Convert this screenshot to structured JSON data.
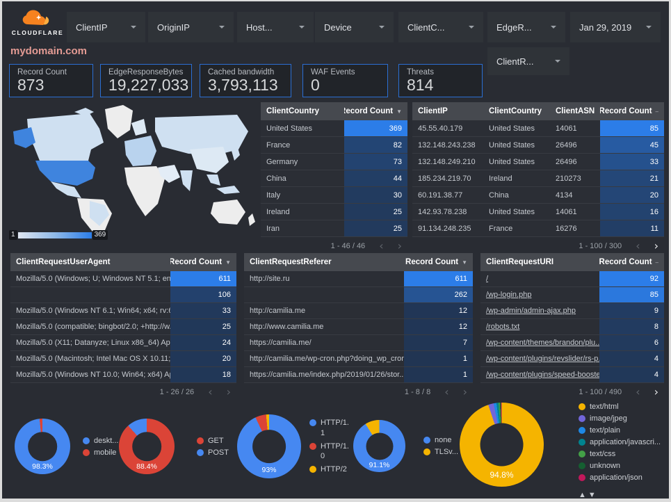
{
  "brand": {
    "name": "CLOUDFLARE"
  },
  "title": "mydomain.com",
  "filters": {
    "row1": [
      {
        "label": "ClientIP"
      },
      {
        "label": "OriginIP"
      },
      {
        "label": "Host..."
      },
      {
        "label": "Device"
      },
      {
        "label": "ClientC..."
      },
      {
        "label": "EdgeR..."
      }
    ],
    "date": {
      "label": "Jan 29, 2019"
    },
    "row2": [
      {
        "label": "ClientR..."
      }
    ]
  },
  "scorecards": [
    {
      "label": "Record Count",
      "value": "873"
    },
    {
      "label": "EdgeResponseBytes",
      "value": "19,227,033"
    },
    {
      "label": "Cached bandwidth",
      "value": "3,793,113"
    },
    {
      "label": "WAF Events",
      "value": "0"
    },
    {
      "label": "Threats",
      "value": "814"
    }
  ],
  "map": {
    "legend_min": "1",
    "legend_max": "369"
  },
  "colors": {
    "accent_blue": "#2b7de9",
    "bar_low": "#21354f",
    "scorecard_border": "#2b6fd4",
    "title_pink": "#e49b94"
  },
  "tables": {
    "clientCountry": {
      "headers": [
        "ClientCountry",
        "Record Count"
      ],
      "sort_indicator": "▼",
      "rows": [
        [
          "United States",
          369
        ],
        [
          "France",
          82
        ],
        [
          "Germany",
          73
        ],
        [
          "China",
          44
        ],
        [
          "Italy",
          30
        ],
        [
          "Ireland",
          25
        ],
        [
          "Iran",
          25
        ]
      ],
      "pagination": "1 - 46 / 46",
      "prev_enabled": false,
      "next_enabled": false
    },
    "clientIP": {
      "headers": [
        "ClientIP",
        "ClientCountry",
        "ClientASN",
        "Record Count"
      ],
      "sort_indicator": "–",
      "rows": [
        [
          "45.55.40.179",
          "United States",
          "14061",
          85
        ],
        [
          "132.148.243.238",
          "United States",
          "26496",
          45
        ],
        [
          "132.148.249.210",
          "United States",
          "26496",
          33
        ],
        [
          "185.234.219.70",
          "Ireland",
          "210273",
          21
        ],
        [
          "60.191.38.77",
          "China",
          "4134",
          20
        ],
        [
          "142.93.78.238",
          "United States",
          "14061",
          16
        ],
        [
          "91.134.248.235",
          "France",
          "16276",
          11
        ]
      ],
      "pagination": "1 - 100 / 300",
      "prev_enabled": false,
      "next_enabled": true
    },
    "userAgent": {
      "headers": [
        "ClientRequestUserAgent",
        "Record Count"
      ],
      "sort_indicator": "▼",
      "rows": [
        [
          "Mozilla/5.0 (Windows; U; Windows NT 5.1; en-U...",
          611
        ],
        [
          "",
          106
        ],
        [
          "Mozilla/5.0 (Windows NT 6.1; Win64; x64; rv:64...",
          33
        ],
        [
          "Mozilla/5.0 (compatible; bingbot/2.0; +http://w...",
          25
        ],
        [
          "Mozilla/5.0 (X11; Datanyze; Linux x86_64) Appl...",
          24
        ],
        [
          "Mozilla/5.0 (Macintosh; Intel Mac OS X 10.11; r...",
          20
        ],
        [
          "Mozilla/5.0 (Windows NT 10.0; Win64; x64) App...",
          18
        ]
      ],
      "pagination": "1 - 26 / 26",
      "prev_enabled": false,
      "next_enabled": false
    },
    "referer": {
      "headers": [
        "ClientRequestReferer",
        "Record Count"
      ],
      "sort_indicator": "▼",
      "rows": [
        [
          "http://site.ru",
          611
        ],
        [
          "",
          262
        ],
        [
          "http://camilia.me",
          12
        ],
        [
          "http://www.camilia.me",
          12
        ],
        [
          "https://camilia.me/",
          7
        ],
        [
          "http://camilia.me/wp-cron.php?doing_wp_cron...",
          1
        ],
        [
          "https://camilia.me/index.php/2019/01/26/stor...",
          1
        ]
      ],
      "pagination": "1 - 8 / 8",
      "prev_enabled": false,
      "next_enabled": false
    },
    "uri": {
      "headers": [
        "ClientRequestURI",
        "Record Count"
      ],
      "sort_indicator": "–",
      "link_rows": true,
      "rows": [
        [
          "/",
          92
        ],
        [
          "/wp-login.php",
          85
        ],
        [
          "/wp-admin/admin-ajax.php",
          9
        ],
        [
          "/robots.txt",
          8
        ],
        [
          "/wp-content/themes/brandon/plu...",
          6
        ],
        [
          "/wp-content/plugins/revslider/rs-p...",
          4
        ],
        [
          "/wp-content/plugins/speed-booste...",
          4
        ]
      ],
      "pagination": "1 - 100 / 490",
      "prev_enabled": false,
      "next_enabled": true
    }
  },
  "chart_data": [
    {
      "type": "heatmap",
      "subtype": "geo-choropleth",
      "dimension": "ClientCountry",
      "metric": "Record Count",
      "range_min": 1,
      "range_max": 369,
      "top_country": {
        "name": "United States",
        "value": 369
      }
    },
    {
      "type": "pie",
      "name": "device-type",
      "center_label": "98.3%",
      "slices": [
        {
          "label": "deskt...",
          "value": 98.3,
          "color": "#4688f1"
        },
        {
          "label": "mobile",
          "value": 1.7,
          "color": "#db4437"
        }
      ]
    },
    {
      "type": "pie",
      "name": "request-method",
      "center_label": "88.4%",
      "slices": [
        {
          "label": "GET",
          "value": 88.4,
          "color": "#db4437"
        },
        {
          "label": "POST",
          "value": 11.6,
          "color": "#4688f1"
        }
      ]
    },
    {
      "type": "pie",
      "name": "http-protocol",
      "center_label": "93%",
      "slices": [
        {
          "label": "HTTP/1.1",
          "value": 93,
          "color": "#4688f1"
        },
        {
          "label": "HTTP/1.0",
          "value": 5.5,
          "color": "#db4437"
        },
        {
          "label": "HTTP/2",
          "value": 1.5,
          "color": "#f5b400"
        }
      ]
    },
    {
      "type": "pie",
      "name": "tls-version",
      "center_label": "91.1%",
      "slices": [
        {
          "label": "none",
          "value": 91.1,
          "color": "#4688f1"
        },
        {
          "label": "TLSv...",
          "value": 8.9,
          "color": "#f5b400"
        }
      ]
    },
    {
      "type": "pie",
      "name": "content-type",
      "center_label": "94.8%",
      "legend_arrows": true,
      "slices": [
        {
          "label": "text/html",
          "value": 94.8,
          "color": "#f5b400"
        },
        {
          "label": "image/jpeg",
          "value": 2.1,
          "color": "#7266d9"
        },
        {
          "label": "text/plain",
          "value": 1.1,
          "color": "#1e88e5"
        },
        {
          "label": "application/javascri...",
          "value": 0.8,
          "color": "#00838f"
        },
        {
          "label": "text/css",
          "value": 0.5,
          "color": "#43a047"
        },
        {
          "label": "unknown",
          "value": 0.4,
          "color": "#155f31"
        },
        {
          "label": "application/json",
          "value": 0.3,
          "color": "#c2185b"
        }
      ]
    }
  ]
}
